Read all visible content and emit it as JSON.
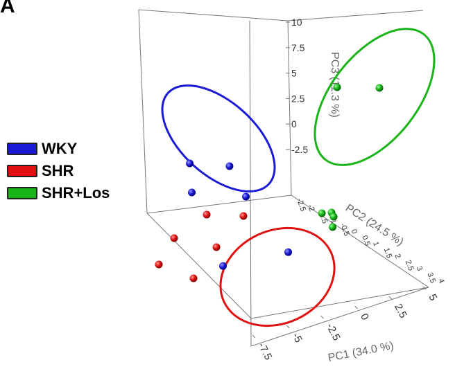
{
  "panel_label": "A",
  "chart_data": {
    "type": "scatter",
    "dimensions": 3,
    "xlabel": "PC1 (34.0 %)",
    "ylabel": "PC2 (24.5 %)",
    "zlabel": "PC3 (11.3 %)",
    "x_ticks": [
      "-7.5",
      "-5",
      "-2.5",
      "0",
      "2.5",
      "5"
    ],
    "y_ticks": [
      "-2.5",
      "-2",
      "-1.5",
      "-1",
      "-0.5",
      "0",
      "0.5",
      "1",
      "1.5",
      "2",
      "2.5",
      "3",
      "3.5",
      "4"
    ],
    "z_ticks": [
      "-2.5",
      "0",
      "2.5",
      "5",
      "7.5",
      "10"
    ],
    "legend_position": "left",
    "series": [
      {
        "name": "WKY",
        "color": "#1a1ad6",
        "ellipse": true,
        "points": [
          [
            -6.5,
            3.0,
            2.0
          ],
          [
            -5.5,
            2.0,
            0.0
          ],
          [
            -3.5,
            2.2,
            2.0
          ],
          [
            -1.5,
            1.0,
            0.0
          ],
          [
            0.5,
            1.5,
            -2.8
          ],
          [
            -1.5,
            -0.5,
            -4.8
          ]
        ]
      },
      {
        "name": "SHR",
        "color": "#e01010",
        "ellipse": true,
        "points": [
          [
            -2.0,
            -1.0,
            -2.0
          ],
          [
            -3.0,
            -2.0,
            -4.0
          ],
          [
            -1.0,
            -1.5,
            -4.0
          ],
          [
            1.0,
            -2.0,
            -2.0
          ],
          [
            -3.0,
            -3.0,
            -6.0
          ],
          [
            -1.0,
            -3.0,
            -6.5
          ]
        ]
      },
      {
        "name": "SHR+Los",
        "color": "#18b418",
        "ellipse": true,
        "points": [
          [
            2.0,
            3.0,
            8.0
          ],
          [
            4.0,
            3.5,
            8.5
          ],
          [
            2.0,
            2.0,
            0.0
          ],
          [
            3.0,
            1.5,
            0.0
          ],
          [
            3.5,
            1.0,
            -1.0
          ],
          [
            4.0,
            0.5,
            -0.5
          ]
        ]
      }
    ]
  }
}
